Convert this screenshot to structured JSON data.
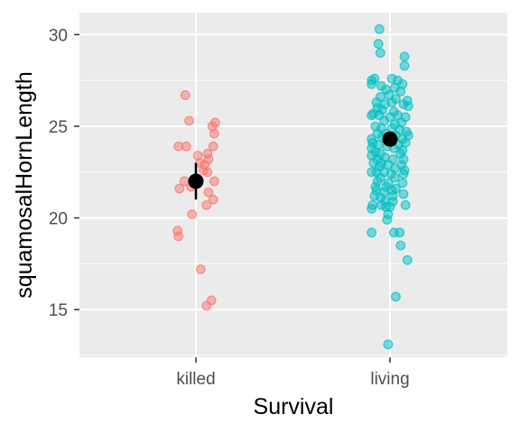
{
  "chart_data": {
    "type": "scatter",
    "xlabel": "Survival",
    "ylabel": "squamosalHornLength",
    "categories": [
      "killed",
      "living"
    ],
    "ylim": [
      12.4,
      31.2
    ],
    "yticks": [
      15,
      20,
      25,
      30
    ],
    "grid": true,
    "legend": "none",
    "colors": {
      "killed": "#F8766D",
      "living": "#00BFC4",
      "summary": "#000000",
      "panel": "#EBEBEB",
      "grid": "#FFFFFF"
    },
    "series": [
      {
        "category": "killed",
        "points": [
          {
            "x": -0.11,
            "y": 26.7
          },
          {
            "x": -0.07,
            "y": 25.3
          },
          {
            "x": 0.2,
            "y": 25.2
          },
          {
            "x": 0.17,
            "y": 25.0
          },
          {
            "x": 0.19,
            "y": 24.6
          },
          {
            "x": -0.18,
            "y": 23.9
          },
          {
            "x": -0.1,
            "y": 23.9
          },
          {
            "x": 0.18,
            "y": 23.9
          },
          {
            "x": 0.12,
            "y": 23.5
          },
          {
            "x": 0.02,
            "y": 23.4
          },
          {
            "x": 0.13,
            "y": 23.2
          },
          {
            "x": 0.04,
            "y": 23.0
          },
          {
            "x": 0.09,
            "y": 22.9
          },
          {
            "x": 0.08,
            "y": 22.6
          },
          {
            "x": 0.12,
            "y": 22.5
          },
          {
            "x": -0.12,
            "y": 22.0
          },
          {
            "x": 0.19,
            "y": 22.0
          },
          {
            "x": -0.05,
            "y": 21.7
          },
          {
            "x": -0.17,
            "y": 21.6
          },
          {
            "x": 0.13,
            "y": 21.4
          },
          {
            "x": 0.18,
            "y": 21.0
          },
          {
            "x": 0.11,
            "y": 20.7
          },
          {
            "x": -0.04,
            "y": 20.2
          },
          {
            "x": -0.19,
            "y": 19.3
          },
          {
            "x": -0.18,
            "y": 19.0
          },
          {
            "x": 0.05,
            "y": 17.2
          },
          {
            "x": 0.16,
            "y": 15.5
          },
          {
            "x": 0.11,
            "y": 15.2
          }
        ],
        "mean": 22.0,
        "ci": [
          21.0,
          23.0
        ]
      },
      {
        "category": "living",
        "points": [
          {
            "x": -0.11,
            "y": 30.3
          },
          {
            "x": -0.12,
            "y": 29.5
          },
          {
            "x": -0.1,
            "y": 29.0
          },
          {
            "x": 0.15,
            "y": 28.8
          },
          {
            "x": 0.15,
            "y": 28.3
          },
          {
            "x": -0.16,
            "y": 27.6
          },
          {
            "x": -0.19,
            "y": 27.5
          },
          {
            "x": -0.19,
            "y": 27.3
          },
          {
            "x": 0.02,
            "y": 27.6
          },
          {
            "x": 0.08,
            "y": 27.5
          },
          {
            "x": 0.13,
            "y": 27.3
          },
          {
            "x": -0.09,
            "y": 27.2
          },
          {
            "x": -0.04,
            "y": 27.0
          },
          {
            "x": 0.05,
            "y": 27.1
          },
          {
            "x": 0.11,
            "y": 26.9
          },
          {
            "x": -0.1,
            "y": 26.6
          },
          {
            "x": -0.01,
            "y": 26.7
          },
          {
            "x": 0.06,
            "y": 26.5
          },
          {
            "x": 0.18,
            "y": 26.4
          },
          {
            "x": -0.14,
            "y": 26.3
          },
          {
            "x": -0.05,
            "y": 26.2
          },
          {
            "x": 0.02,
            "y": 26.3
          },
          {
            "x": 0.14,
            "y": 26.2
          },
          {
            "x": -0.13,
            "y": 26.0
          },
          {
            "x": -0.08,
            "y": 25.9
          },
          {
            "x": 0.04,
            "y": 25.8
          },
          {
            "x": 0.19,
            "y": 26.1
          },
          {
            "x": -0.19,
            "y": 25.6
          },
          {
            "x": -0.17,
            "y": 25.7
          },
          {
            "x": -0.11,
            "y": 25.6
          },
          {
            "x": 0.0,
            "y": 25.5
          },
          {
            "x": 0.08,
            "y": 25.6
          },
          {
            "x": 0.16,
            "y": 25.5
          },
          {
            "x": -0.06,
            "y": 25.3
          },
          {
            "x": 0.05,
            "y": 25.1
          },
          {
            "x": 0.12,
            "y": 25.2
          },
          {
            "x": -0.15,
            "y": 25.0
          },
          {
            "x": -0.09,
            "y": 24.9
          },
          {
            "x": 0.02,
            "y": 24.9
          },
          {
            "x": 0.1,
            "y": 24.8
          },
          {
            "x": 0.17,
            "y": 24.7
          },
          {
            "x": -0.13,
            "y": 24.6
          },
          {
            "x": -0.04,
            "y": 24.6
          },
          {
            "x": 0.06,
            "y": 24.5
          },
          {
            "x": 0.19,
            "y": 24.5
          },
          {
            "x": -0.19,
            "y": 24.3
          },
          {
            "x": -0.08,
            "y": 24.4
          },
          {
            "x": 0.13,
            "y": 24.3
          },
          {
            "x": -0.18,
            "y": 24.1
          },
          {
            "x": -0.12,
            "y": 24.0
          },
          {
            "x": 0.09,
            "y": 24.0
          },
          {
            "x": 0.16,
            "y": 24.1
          },
          {
            "x": -0.19,
            "y": 23.8
          },
          {
            "x": -0.03,
            "y": 23.9
          },
          {
            "x": 0.04,
            "y": 23.8
          },
          {
            "x": 0.13,
            "y": 23.7
          },
          {
            "x": -0.15,
            "y": 23.6
          },
          {
            "x": -0.1,
            "y": 23.5
          },
          {
            "x": 0.11,
            "y": 23.5
          },
          {
            "x": -0.19,
            "y": 23.4
          },
          {
            "x": -0.13,
            "y": 23.2
          },
          {
            "x": -0.05,
            "y": 23.3
          },
          {
            "x": 0.03,
            "y": 23.2
          },
          {
            "x": 0.14,
            "y": 23.2
          },
          {
            "x": -0.17,
            "y": 23.0
          },
          {
            "x": -0.09,
            "y": 23.0
          },
          {
            "x": -0.02,
            "y": 22.9
          },
          {
            "x": 0.12,
            "y": 22.9
          },
          {
            "x": -0.11,
            "y": 22.8
          },
          {
            "x": 0.05,
            "y": 22.7
          },
          {
            "x": 0.15,
            "y": 22.6
          },
          {
            "x": -0.19,
            "y": 22.5
          },
          {
            "x": -0.14,
            "y": 22.5
          },
          {
            "x": -0.06,
            "y": 22.5
          },
          {
            "x": 0.01,
            "y": 22.4
          },
          {
            "x": 0.14,
            "y": 22.4
          },
          {
            "x": -0.1,
            "y": 22.2
          },
          {
            "x": 0.05,
            "y": 22.2
          },
          {
            "x": -0.13,
            "y": 22.0
          },
          {
            "x": -0.02,
            "y": 21.9
          },
          {
            "x": 0.13,
            "y": 21.9
          },
          {
            "x": -0.15,
            "y": 21.7
          },
          {
            "x": -0.04,
            "y": 21.7
          },
          {
            "x": 0.06,
            "y": 21.6
          },
          {
            "x": -0.14,
            "y": 21.5
          },
          {
            "x": -0.06,
            "y": 21.4
          },
          {
            "x": 0.02,
            "y": 21.5
          },
          {
            "x": 0.14,
            "y": 21.3
          },
          {
            "x": -0.16,
            "y": 21.2
          },
          {
            "x": -0.1,
            "y": 21.1
          },
          {
            "x": 0.03,
            "y": 21.2
          },
          {
            "x": -0.05,
            "y": 20.9
          },
          {
            "x": 0.03,
            "y": 20.9
          },
          {
            "x": -0.18,
            "y": 20.7
          },
          {
            "x": -0.09,
            "y": 20.7
          },
          {
            "x": -0.04,
            "y": 20.6
          },
          {
            "x": 0.0,
            "y": 20.6
          },
          {
            "x": 0.16,
            "y": 20.7
          },
          {
            "x": -0.19,
            "y": 20.5
          },
          {
            "x": -0.02,
            "y": 20.2
          },
          {
            "x": -0.03,
            "y": 19.9
          },
          {
            "x": -0.19,
            "y": 19.2
          },
          {
            "x": 0.04,
            "y": 19.2
          },
          {
            "x": 0.1,
            "y": 19.2
          },
          {
            "x": 0.11,
            "y": 18.5
          },
          {
            "x": 0.18,
            "y": 17.7
          },
          {
            "x": 0.06,
            "y": 15.7
          },
          {
            "x": -0.02,
            "y": 13.1
          }
        ],
        "mean": 24.3,
        "ci": [
          23.9,
          24.7
        ]
      }
    ]
  }
}
